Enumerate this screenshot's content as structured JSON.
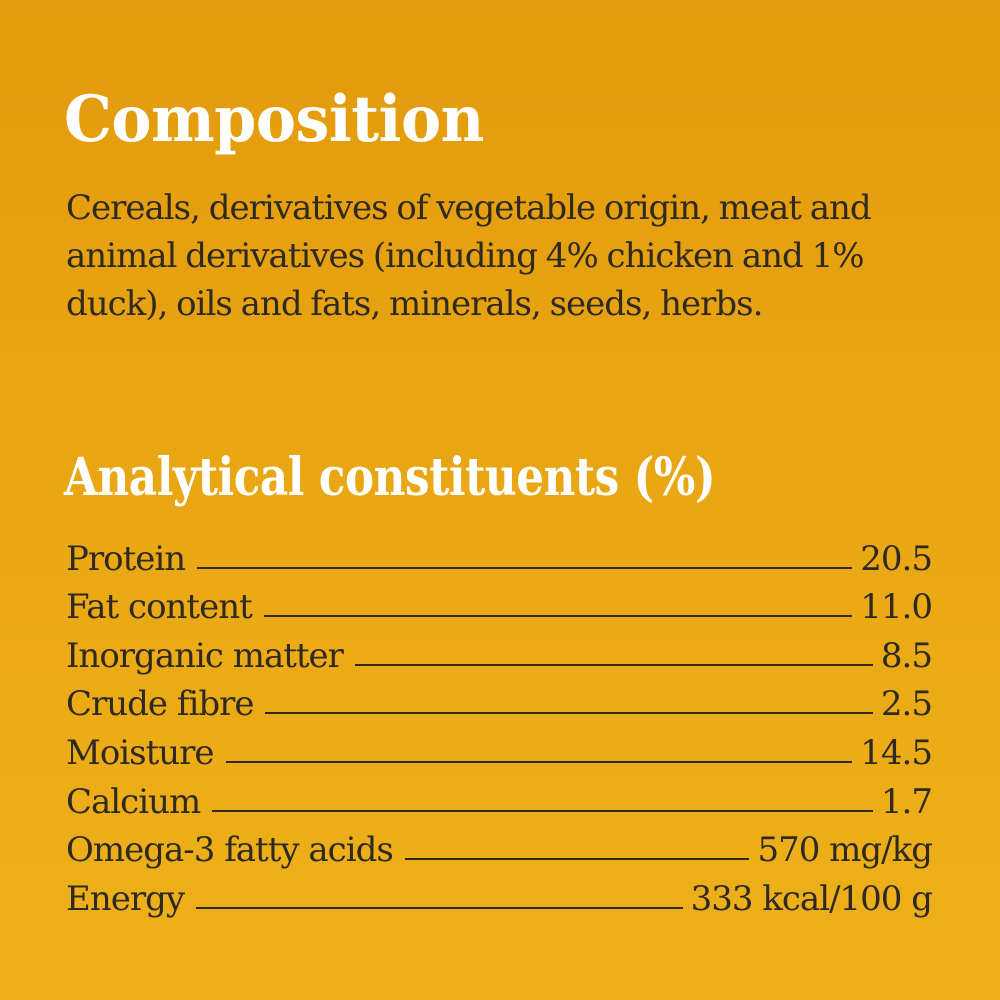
{
  "composition": {
    "heading": "Composition",
    "text": "Cereals, derivatives of vegetable origin, meat and animal derivatives (including 4% chicken and 1% duck), oils and fats, minerals, seeds, herbs."
  },
  "analytical": {
    "heading": "Analytical constituents (%)",
    "rows": [
      {
        "label": "Protein",
        "value": "20.5"
      },
      {
        "label": "Fat content",
        "value": "11.0"
      },
      {
        "label": "Inorganic matter",
        "value": "8.5"
      },
      {
        "label": "Crude fibre",
        "value": "2.5"
      },
      {
        "label": "Moisture",
        "value": "14.5"
      },
      {
        "label": "Calcium",
        "value": "1.7"
      },
      {
        "label": "Omega-3 fatty acids",
        "value": "570 mg/kg"
      },
      {
        "label": "Energy",
        "value": "333 kcal/100 g"
      }
    ]
  },
  "colors": {
    "background_top": "#E39A0C",
    "background_bottom": "#EEB11A",
    "heading": "#FFFFFF",
    "body_text": "#2E2A22"
  }
}
